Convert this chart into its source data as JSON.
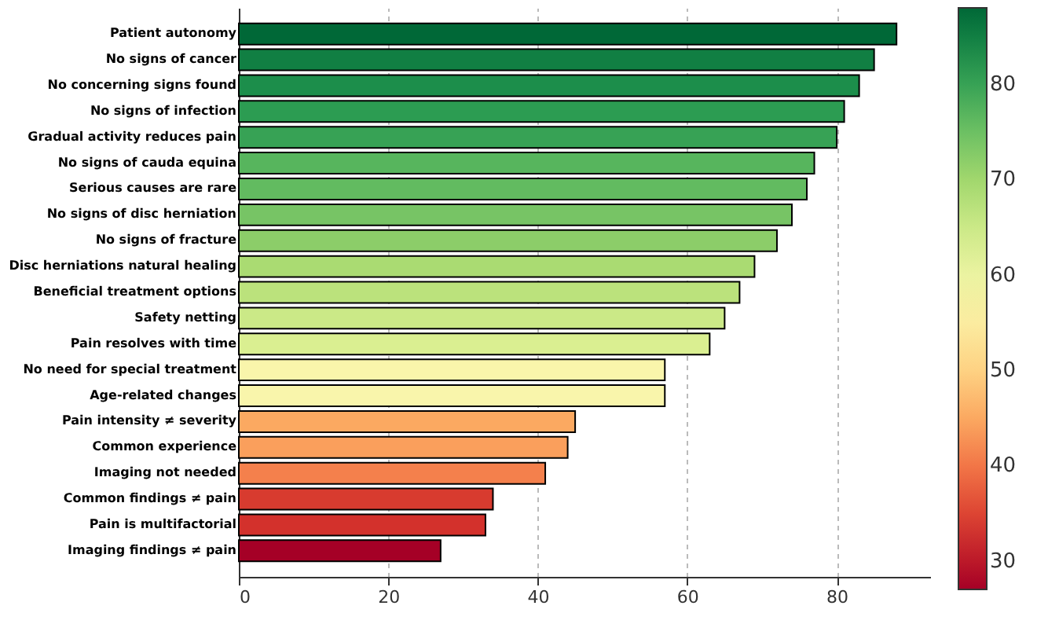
{
  "chart_data": {
    "type": "bar",
    "orientation": "horizontal",
    "categories": [
      "Patient autonomy",
      "No signs of cancer",
      "No concerning signs found",
      "No signs of infection",
      "Gradual activity reduces pain",
      "No signs of cauda equina",
      "Serious causes are rare",
      "No signs of disc herniation",
      "No signs of fracture",
      "Disc herniations natural healing",
      "Beneficial treatment options",
      "Safety netting",
      "Pain resolves with time",
      "No need for special treatment",
      "Age-related changes",
      "Pain intensity ≠ severity",
      "Common experience",
      "Imaging not needed",
      "Common findings ≠ pain",
      "Pain is multifactorial",
      "Imaging findings ≠ pain"
    ],
    "values": [
      88,
      85,
      83,
      81,
      80,
      77,
      76,
      74,
      72,
      69,
      67,
      65,
      63,
      57,
      57,
      45,
      44,
      41,
      34,
      33,
      27
    ],
    "xlim": [
      0,
      92.5
    ],
    "xticks": [
      0,
      20,
      40,
      60,
      80
    ],
    "grid": "x",
    "clim": [
      27,
      88
    ],
    "cticks": [
      30,
      40,
      50,
      60,
      70,
      80
    ]
  }
}
